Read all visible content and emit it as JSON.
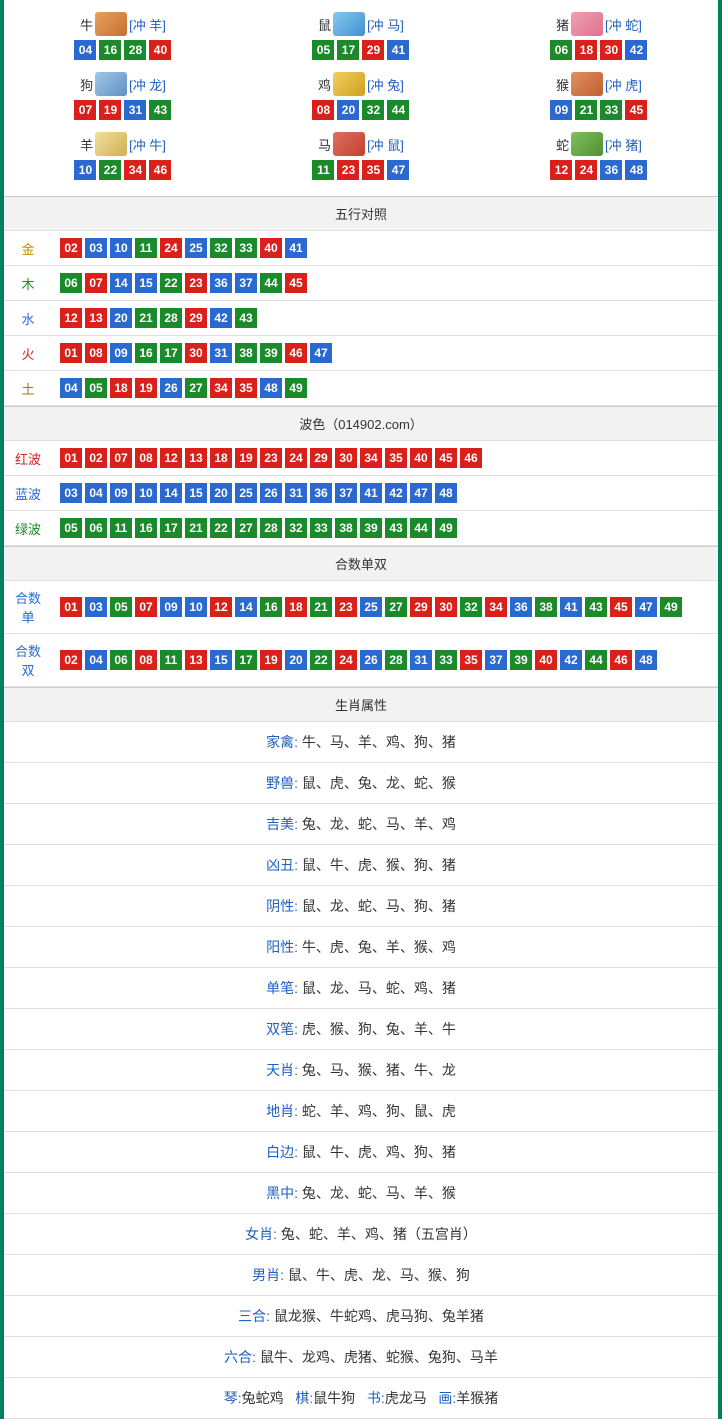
{
  "colors": {
    "red": "#d9201a",
    "blue": "#2a69d0",
    "green": "#1a8a2a",
    "border": "#008060"
  },
  "zodiac": [
    {
      "name": "牛",
      "icon": "zi-ox",
      "conflict": "[冲 羊]",
      "nums": [
        {
          "n": "04",
          "c": "blue"
        },
        {
          "n": "16",
          "c": "green"
        },
        {
          "n": "28",
          "c": "green"
        },
        {
          "n": "40",
          "c": "red"
        }
      ]
    },
    {
      "name": "鼠",
      "icon": "zi-rat",
      "conflict": "[冲 马]",
      "nums": [
        {
          "n": "05",
          "c": "green"
        },
        {
          "n": "17",
          "c": "green"
        },
        {
          "n": "29",
          "c": "red"
        },
        {
          "n": "41",
          "c": "blue"
        }
      ]
    },
    {
      "name": "猪",
      "icon": "zi-pig",
      "conflict": "[冲 蛇]",
      "nums": [
        {
          "n": "06",
          "c": "green"
        },
        {
          "n": "18",
          "c": "red"
        },
        {
          "n": "30",
          "c": "red"
        },
        {
          "n": "42",
          "c": "blue"
        }
      ]
    },
    {
      "name": "狗",
      "icon": "zi-dog",
      "conflict": "[冲 龙]",
      "nums": [
        {
          "n": "07",
          "c": "red"
        },
        {
          "n": "19",
          "c": "red"
        },
        {
          "n": "31",
          "c": "blue"
        },
        {
          "n": "43",
          "c": "green"
        }
      ]
    },
    {
      "name": "鸡",
      "icon": "zi-rooster",
      "conflict": "[冲 兔]",
      "nums": [
        {
          "n": "08",
          "c": "red"
        },
        {
          "n": "20",
          "c": "blue"
        },
        {
          "n": "32",
          "c": "green"
        },
        {
          "n": "44",
          "c": "green"
        }
      ]
    },
    {
      "name": "猴",
      "icon": "zi-monkey",
      "conflict": "[冲 虎]",
      "nums": [
        {
          "n": "09",
          "c": "blue"
        },
        {
          "n": "21",
          "c": "green"
        },
        {
          "n": "33",
          "c": "green"
        },
        {
          "n": "45",
          "c": "red"
        }
      ]
    },
    {
      "name": "羊",
      "icon": "zi-goat",
      "conflict": "[冲 牛]",
      "nums": [
        {
          "n": "10",
          "c": "blue"
        },
        {
          "n": "22",
          "c": "green"
        },
        {
          "n": "34",
          "c": "red"
        },
        {
          "n": "46",
          "c": "red"
        }
      ]
    },
    {
      "name": "马",
      "icon": "zi-horse",
      "conflict": "[冲 鼠]",
      "nums": [
        {
          "n": "11",
          "c": "green"
        },
        {
          "n": "23",
          "c": "red"
        },
        {
          "n": "35",
          "c": "red"
        },
        {
          "n": "47",
          "c": "blue"
        }
      ]
    },
    {
      "name": "蛇",
      "icon": "zi-snake",
      "conflict": "[冲 猪]",
      "nums": [
        {
          "n": "12",
          "c": "red"
        },
        {
          "n": "24",
          "c": "red"
        },
        {
          "n": "36",
          "c": "blue"
        },
        {
          "n": "48",
          "c": "blue"
        }
      ]
    }
  ],
  "sections": {
    "wuxing": {
      "title": "五行对照",
      "rows": [
        {
          "label": "金",
          "labelClass": "lbl-gold",
          "nums": [
            {
              "n": "02",
              "c": "red"
            },
            {
              "n": "03",
              "c": "blue"
            },
            {
              "n": "10",
              "c": "blue"
            },
            {
              "n": "11",
              "c": "green"
            },
            {
              "n": "24",
              "c": "red"
            },
            {
              "n": "25",
              "c": "blue"
            },
            {
              "n": "32",
              "c": "green"
            },
            {
              "n": "33",
              "c": "green"
            },
            {
              "n": "40",
              "c": "red"
            },
            {
              "n": "41",
              "c": "blue"
            }
          ]
        },
        {
          "label": "木",
          "labelClass": "lbl-wood",
          "nums": [
            {
              "n": "06",
              "c": "green"
            },
            {
              "n": "07",
              "c": "red"
            },
            {
              "n": "14",
              "c": "blue"
            },
            {
              "n": "15",
              "c": "blue"
            },
            {
              "n": "22",
              "c": "green"
            },
            {
              "n": "23",
              "c": "red"
            },
            {
              "n": "36",
              "c": "blue"
            },
            {
              "n": "37",
              "c": "blue"
            },
            {
              "n": "44",
              "c": "green"
            },
            {
              "n": "45",
              "c": "red"
            }
          ]
        },
        {
          "label": "水",
          "labelClass": "lbl-water",
          "nums": [
            {
              "n": "12",
              "c": "red"
            },
            {
              "n": "13",
              "c": "red"
            },
            {
              "n": "20",
              "c": "blue"
            },
            {
              "n": "21",
              "c": "green"
            },
            {
              "n": "28",
              "c": "green"
            },
            {
              "n": "29",
              "c": "red"
            },
            {
              "n": "42",
              "c": "blue"
            },
            {
              "n": "43",
              "c": "green"
            }
          ]
        },
        {
          "label": "火",
          "labelClass": "lbl-fire",
          "nums": [
            {
              "n": "01",
              "c": "red"
            },
            {
              "n": "08",
              "c": "red"
            },
            {
              "n": "09",
              "c": "blue"
            },
            {
              "n": "16",
              "c": "green"
            },
            {
              "n": "17",
              "c": "green"
            },
            {
              "n": "30",
              "c": "red"
            },
            {
              "n": "31",
              "c": "blue"
            },
            {
              "n": "38",
              "c": "green"
            },
            {
              "n": "39",
              "c": "green"
            },
            {
              "n": "46",
              "c": "red"
            },
            {
              "n": "47",
              "c": "blue"
            }
          ]
        },
        {
          "label": "土",
          "labelClass": "lbl-earth",
          "nums": [
            {
              "n": "04",
              "c": "blue"
            },
            {
              "n": "05",
              "c": "green"
            },
            {
              "n": "18",
              "c": "red"
            },
            {
              "n": "19",
              "c": "red"
            },
            {
              "n": "26",
              "c": "blue"
            },
            {
              "n": "27",
              "c": "green"
            },
            {
              "n": "34",
              "c": "red"
            },
            {
              "n": "35",
              "c": "red"
            },
            {
              "n": "48",
              "c": "blue"
            },
            {
              "n": "49",
              "c": "green"
            }
          ]
        }
      ]
    },
    "bose": {
      "title": "波色（014902.com）",
      "rows": [
        {
          "label": "红波",
          "labelClass": "lbl-red",
          "nums": [
            {
              "n": "01",
              "c": "red"
            },
            {
              "n": "02",
              "c": "red"
            },
            {
              "n": "07",
              "c": "red"
            },
            {
              "n": "08",
              "c": "red"
            },
            {
              "n": "12",
              "c": "red"
            },
            {
              "n": "13",
              "c": "red"
            },
            {
              "n": "18",
              "c": "red"
            },
            {
              "n": "19",
              "c": "red"
            },
            {
              "n": "23",
              "c": "red"
            },
            {
              "n": "24",
              "c": "red"
            },
            {
              "n": "29",
              "c": "red"
            },
            {
              "n": "30",
              "c": "red"
            },
            {
              "n": "34",
              "c": "red"
            },
            {
              "n": "35",
              "c": "red"
            },
            {
              "n": "40",
              "c": "red"
            },
            {
              "n": "45",
              "c": "red"
            },
            {
              "n": "46",
              "c": "red"
            }
          ]
        },
        {
          "label": "蓝波",
          "labelClass": "lbl-blue",
          "nums": [
            {
              "n": "03",
              "c": "blue"
            },
            {
              "n": "04",
              "c": "blue"
            },
            {
              "n": "09",
              "c": "blue"
            },
            {
              "n": "10",
              "c": "blue"
            },
            {
              "n": "14",
              "c": "blue"
            },
            {
              "n": "15",
              "c": "blue"
            },
            {
              "n": "20",
              "c": "blue"
            },
            {
              "n": "25",
              "c": "blue"
            },
            {
              "n": "26",
              "c": "blue"
            },
            {
              "n": "31",
              "c": "blue"
            },
            {
              "n": "36",
              "c": "blue"
            },
            {
              "n": "37",
              "c": "blue"
            },
            {
              "n": "41",
              "c": "blue"
            },
            {
              "n": "42",
              "c": "blue"
            },
            {
              "n": "47",
              "c": "blue"
            },
            {
              "n": "48",
              "c": "blue"
            }
          ]
        },
        {
          "label": "绿波",
          "labelClass": "lbl-green",
          "nums": [
            {
              "n": "05",
              "c": "green"
            },
            {
              "n": "06",
              "c": "green"
            },
            {
              "n": "11",
              "c": "green"
            },
            {
              "n": "16",
              "c": "green"
            },
            {
              "n": "17",
              "c": "green"
            },
            {
              "n": "21",
              "c": "green"
            },
            {
              "n": "22",
              "c": "green"
            },
            {
              "n": "27",
              "c": "green"
            },
            {
              "n": "28",
              "c": "green"
            },
            {
              "n": "32",
              "c": "green"
            },
            {
              "n": "33",
              "c": "green"
            },
            {
              "n": "38",
              "c": "green"
            },
            {
              "n": "39",
              "c": "green"
            },
            {
              "n": "43",
              "c": "green"
            },
            {
              "n": "44",
              "c": "green"
            },
            {
              "n": "49",
              "c": "green"
            }
          ]
        }
      ]
    },
    "heshu": {
      "title": "合数单双",
      "rows": [
        {
          "label": "合数单",
          "labelClass": "lbl-blue",
          "nums": [
            {
              "n": "01",
              "c": "red"
            },
            {
              "n": "03",
              "c": "blue"
            },
            {
              "n": "05",
              "c": "green"
            },
            {
              "n": "07",
              "c": "red"
            },
            {
              "n": "09",
              "c": "blue"
            },
            {
              "n": "10",
              "c": "blue"
            },
            {
              "n": "12",
              "c": "red"
            },
            {
              "n": "14",
              "c": "blue"
            },
            {
              "n": "16",
              "c": "green"
            },
            {
              "n": "18",
              "c": "red"
            },
            {
              "n": "21",
              "c": "green"
            },
            {
              "n": "23",
              "c": "red"
            },
            {
              "n": "25",
              "c": "blue"
            },
            {
              "n": "27",
              "c": "green"
            },
            {
              "n": "29",
              "c": "red"
            },
            {
              "n": "30",
              "c": "red"
            },
            {
              "n": "32",
              "c": "green"
            },
            {
              "n": "34",
              "c": "red"
            },
            {
              "n": "36",
              "c": "blue"
            },
            {
              "n": "38",
              "c": "green"
            },
            {
              "n": "41",
              "c": "blue"
            },
            {
              "n": "43",
              "c": "green"
            },
            {
              "n": "45",
              "c": "red"
            },
            {
              "n": "47",
              "c": "blue"
            },
            {
              "n": "49",
              "c": "green"
            }
          ]
        },
        {
          "label": "合数双",
          "labelClass": "lbl-blue",
          "nums": [
            {
              "n": "02",
              "c": "red"
            },
            {
              "n": "04",
              "c": "blue"
            },
            {
              "n": "06",
              "c": "green"
            },
            {
              "n": "08",
              "c": "red"
            },
            {
              "n": "11",
              "c": "green"
            },
            {
              "n": "13",
              "c": "red"
            },
            {
              "n": "15",
              "c": "blue"
            },
            {
              "n": "17",
              "c": "green"
            },
            {
              "n": "19",
              "c": "red"
            },
            {
              "n": "20",
              "c": "blue"
            },
            {
              "n": "22",
              "c": "green"
            },
            {
              "n": "24",
              "c": "red"
            },
            {
              "n": "26",
              "c": "blue"
            },
            {
              "n": "28",
              "c": "green"
            },
            {
              "n": "31",
              "c": "blue"
            },
            {
              "n": "33",
              "c": "green"
            },
            {
              "n": "35",
              "c": "red"
            },
            {
              "n": "37",
              "c": "blue"
            },
            {
              "n": "39",
              "c": "green"
            },
            {
              "n": "40",
              "c": "red"
            },
            {
              "n": "42",
              "c": "blue"
            },
            {
              "n": "44",
              "c": "green"
            },
            {
              "n": "46",
              "c": "red"
            },
            {
              "n": "48",
              "c": "blue"
            }
          ]
        }
      ]
    },
    "attrs": {
      "title": "生肖属性",
      "rows": [
        {
          "label": "家禽:",
          "val": " 牛、马、羊、鸡、狗、猪"
        },
        {
          "label": "野兽:",
          "val": " 鼠、虎、兔、龙、蛇、猴"
        },
        {
          "label": "吉美:",
          "val": " 兔、龙、蛇、马、羊、鸡"
        },
        {
          "label": "凶丑:",
          "val": " 鼠、牛、虎、猴、狗、猪"
        },
        {
          "label": "阴性:",
          "val": " 鼠、龙、蛇、马、狗、猪"
        },
        {
          "label": "阳性:",
          "val": " 牛、虎、兔、羊、猴、鸡"
        },
        {
          "label": "单笔:",
          "val": " 鼠、龙、马、蛇、鸡、猪"
        },
        {
          "label": "双笔:",
          "val": " 虎、猴、狗、兔、羊、牛"
        },
        {
          "label": "天肖:",
          "val": " 兔、马、猴、猪、牛、龙"
        },
        {
          "label": "地肖:",
          "val": " 蛇、羊、鸡、狗、鼠、虎"
        },
        {
          "label": "白边:",
          "val": " 鼠、牛、虎、鸡、狗、猪"
        },
        {
          "label": "黑中:",
          "val": " 兔、龙、蛇、马、羊、猴"
        },
        {
          "label": "女肖: ",
          "val": "兔、蛇、羊、鸡、猪（五宫肖）"
        },
        {
          "label": "男肖: ",
          "val": "鼠、牛、虎、龙、马、猴、狗"
        },
        {
          "label": "三合: ",
          "val": "鼠龙猴、牛蛇鸡、虎马狗、兔羊猪"
        },
        {
          "label": "六合: ",
          "val": "鼠牛、龙鸡、虎猪、蛇猴、兔狗、马羊"
        }
      ],
      "pieces": [
        {
          "label": "琴:",
          "val": "兔蛇鸡"
        },
        {
          "label": "棋:",
          "val": "鼠牛狗"
        },
        {
          "label": "书:",
          "val": "虎龙马"
        },
        {
          "label": "画:",
          "val": "羊猴猪"
        }
      ]
    }
  }
}
